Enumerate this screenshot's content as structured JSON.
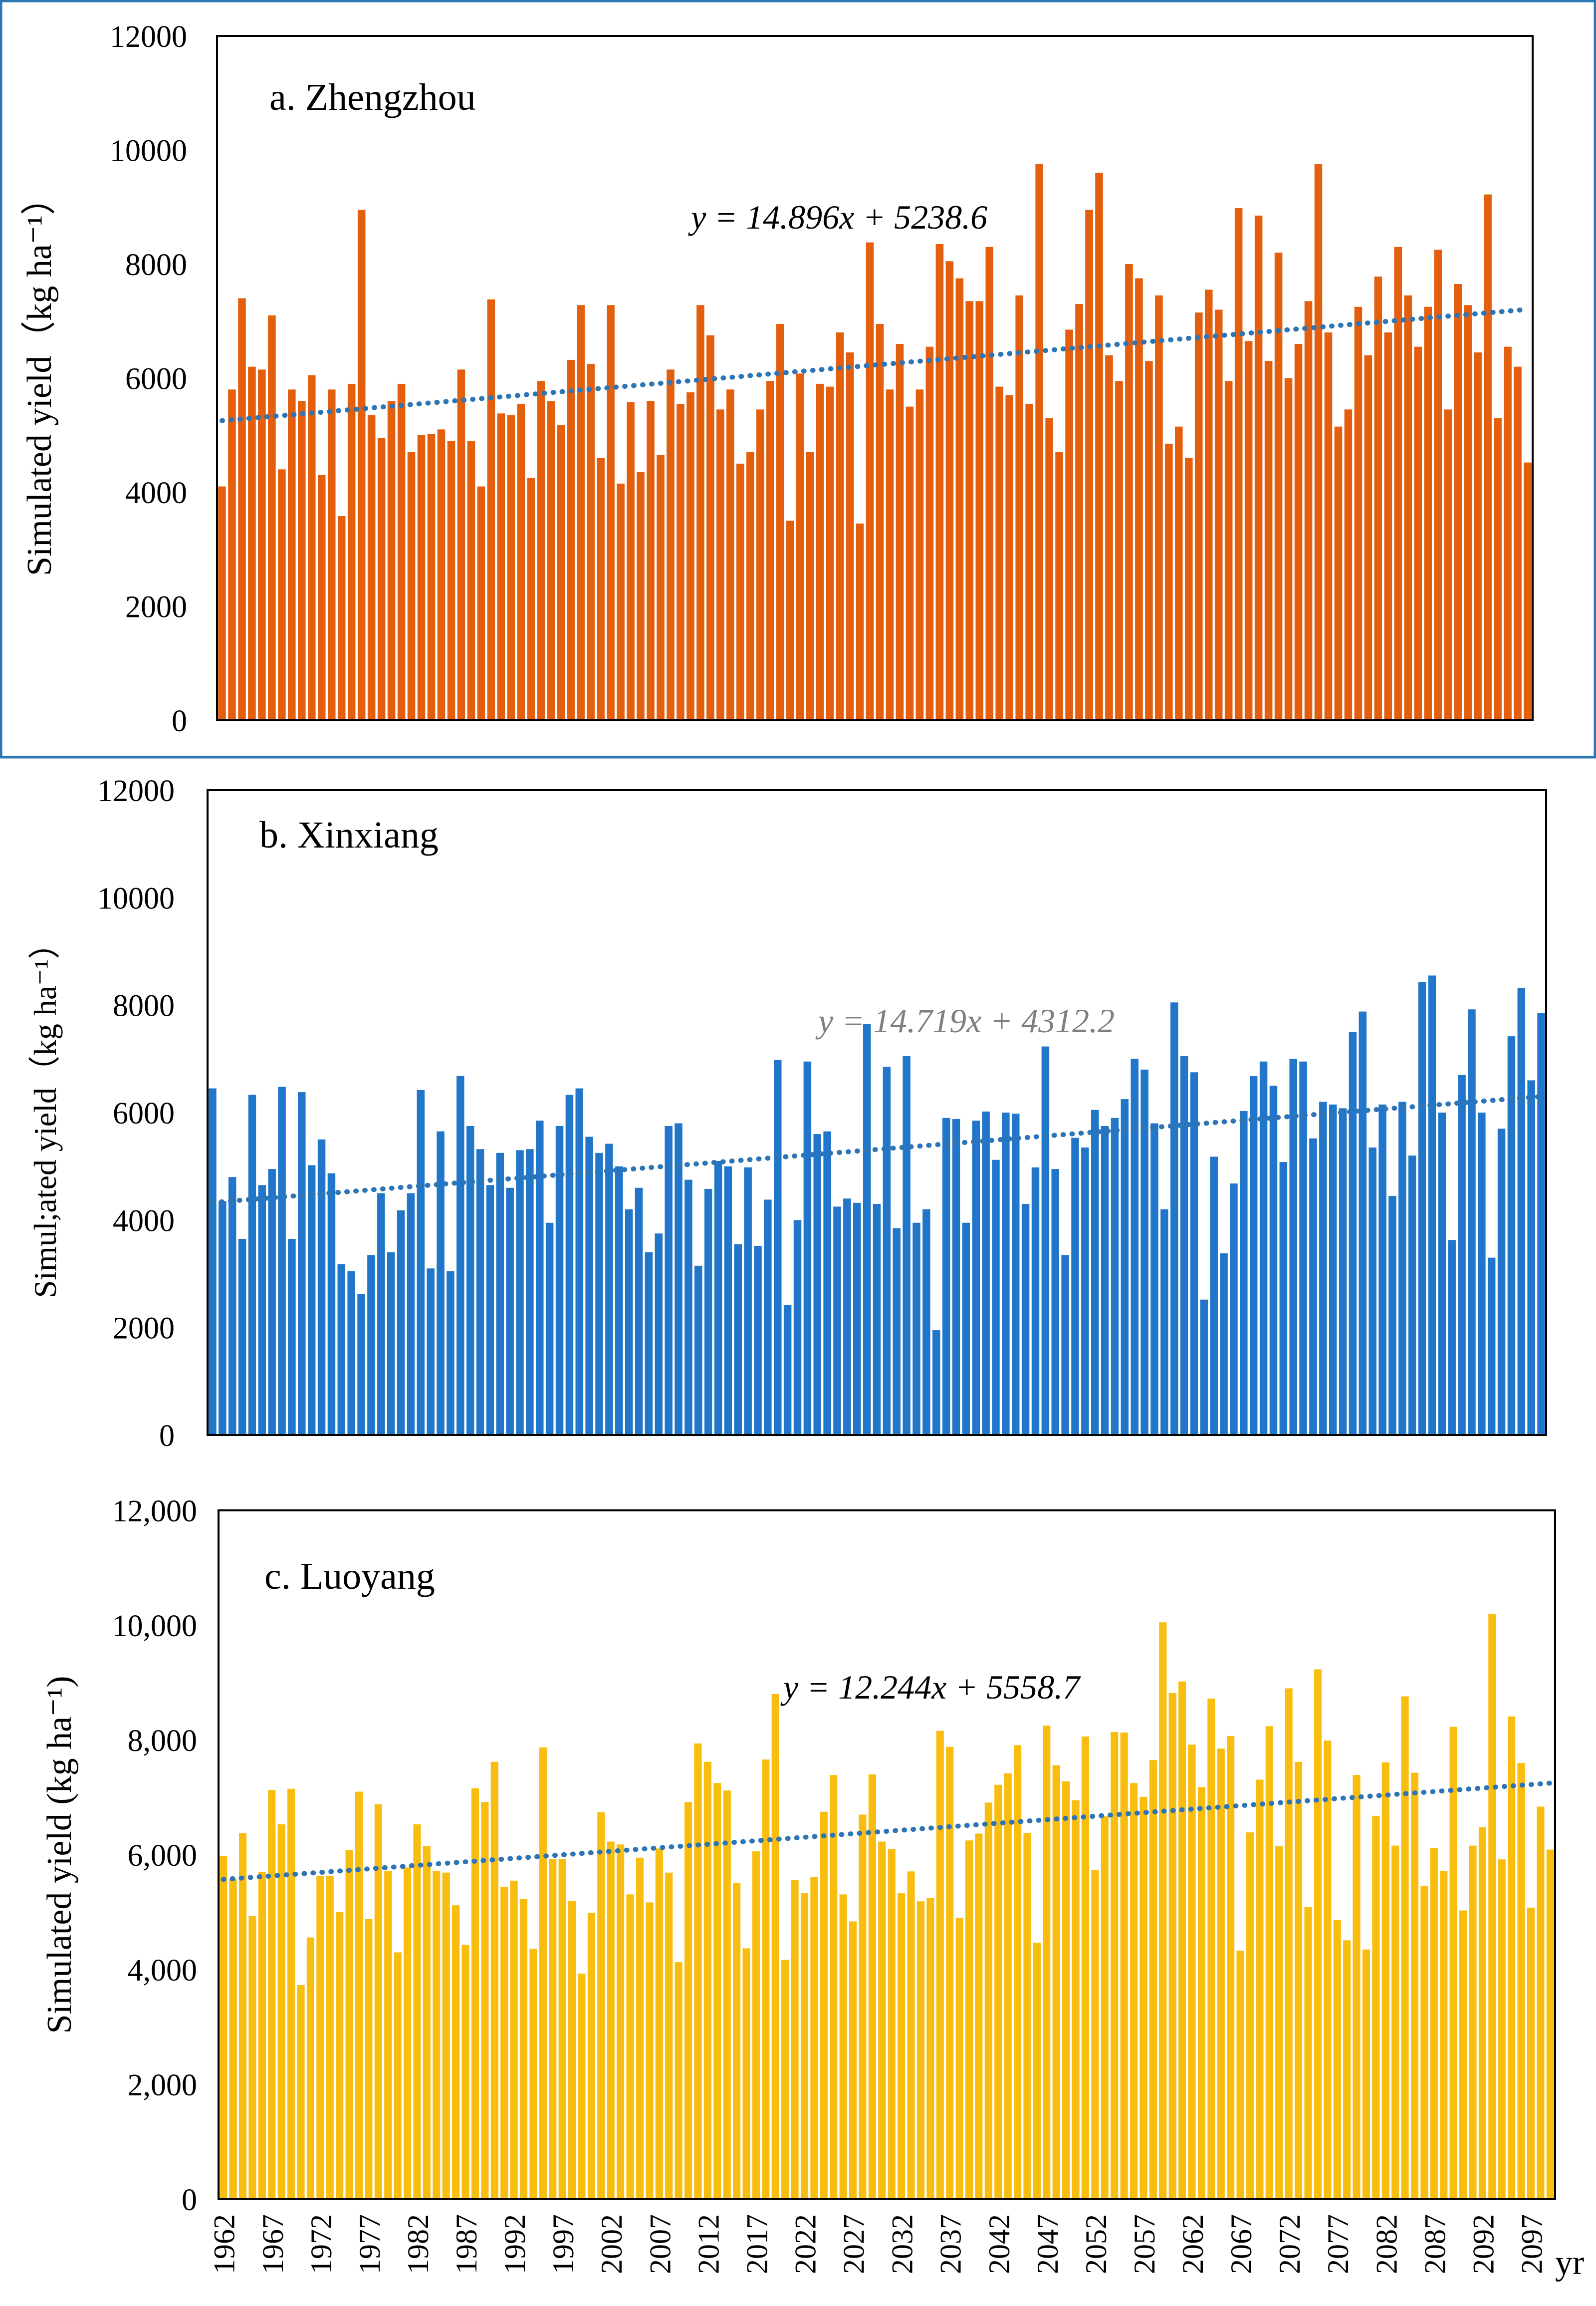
{
  "x_axis_unit_label": "yr",
  "chart_data": [
    {
      "type": "bar",
      "title": "a. Zhengzhou",
      "ylabel": "Simulated yield（kg ha⁻¹）",
      "ylim": [
        0,
        12000
      ],
      "y_ticks": [
        "0",
        "2000",
        "4000",
        "6000",
        "8000",
        "10000",
        "12000"
      ],
      "bar_color": "#e35f0e",
      "trend_color": "#2e75b6",
      "frame_color": "#2e75b6",
      "trend_equation": "y = 14.896x + 5238.6",
      "trend": {
        "slope": 14.896,
        "intercept": 5238.6
      },
      "show_x_tick_labels": false,
      "years_start": 1962,
      "values": [
        4100,
        5800,
        7400,
        6200,
        6150,
        7100,
        4400,
        5800,
        5600,
        6050,
        4300,
        5800,
        3580,
        5900,
        8950,
        5350,
        4950,
        5600,
        5900,
        4700,
        5000,
        5020,
        5100,
        4900,
        6150,
        4900,
        4100,
        7380,
        5380,
        5350,
        5550,
        4250,
        5950,
        5600,
        5180,
        6320,
        7280,
        6250,
        4600,
        7280,
        4150,
        5580,
        4350,
        5600,
        4650,
        6150,
        5550,
        5750,
        7280,
        6750,
        5450,
        5800,
        4500,
        4700,
        5450,
        5950,
        6950,
        3500,
        6080,
        4700,
        5900,
        5850,
        6800,
        6450,
        3450,
        8380,
        6950,
        5800,
        6600,
        5500,
        5800,
        6550,
        8350,
        8050,
        7750,
        7350,
        7350,
        8300,
        5850,
        5700,
        7450,
        5550,
        9750,
        5300,
        4700,
        6850,
        7300,
        8950,
        9600,
        6400,
        5950,
        8000,
        7750,
        6300,
        7450,
        4850,
        5150,
        4600,
        7150,
        7550,
        7200,
        5950,
        8980,
        6650,
        8850,
        6300,
        8200,
        6000,
        6600,
        7350,
        9750,
        6800,
        5150,
        5450,
        7250,
        6400,
        7780,
        6800,
        8300,
        7450,
        6550,
        7250,
        8250,
        5450,
        7650,
        7280,
        6450,
        9220,
        5300,
        6550,
        6200,
        4520
      ]
    },
    {
      "type": "bar",
      "title": "b. Xinxiang",
      "ylabel": "Simul;ated yield（kg ha⁻¹）",
      "ylim": [
        0,
        12000
      ],
      "y_ticks": [
        "0",
        "2000",
        "4000",
        "6000",
        "8000",
        "10000",
        "12000"
      ],
      "bar_color": "#2176c9",
      "trend_color": "#2e75b6",
      "frame_color": "#000000",
      "trend_equation": "y = 14.719x + 4312.2",
      "trend": {
        "slope": 14.719,
        "intercept": 4312.2
      },
      "show_x_tick_labels": false,
      "years_start": 1962,
      "values": [
        6450,
        4350,
        4800,
        3650,
        6330,
        4650,
        4950,
        6480,
        3650,
        6380,
        5020,
        5500,
        4870,
        3180,
        3050,
        2620,
        3350,
        4500,
        3400,
        4180,
        4500,
        6420,
        3100,
        5650,
        3050,
        6680,
        5750,
        5320,
        4650,
        5250,
        4600,
        5300,
        5320,
        5850,
        3950,
        5750,
        6330,
        6450,
        5550,
        5250,
        5420,
        5000,
        4200,
        4600,
        3400,
        3750,
        5750,
        5800,
        4750,
        3150,
        4580,
        5100,
        5000,
        3550,
        4980,
        3520,
        4380,
        6980,
        2420,
        4000,
        6950,
        5600,
        5650,
        4250,
        4400,
        4320,
        7650,
        4300,
        6850,
        3850,
        7050,
        3950,
        4200,
        1950,
        5900,
        5880,
        3950,
        5850,
        6020,
        5120,
        6000,
        5980,
        4300,
        4980,
        7230,
        4950,
        3350,
        5530,
        5350,
        6050,
        5750,
        5900,
        6250,
        7000,
        6800,
        5800,
        4200,
        8050,
        7050,
        6750,
        2520,
        5180,
        3380,
        4680,
        6030,
        6680,
        6950,
        6500,
        5080,
        7000,
        6950,
        5520,
        6200,
        6150,
        6080,
        7500,
        7880,
        5350,
        6150,
        4450,
        6200,
        5200,
        8430,
        8550,
        6000,
        3630,
        6700,
        7920,
        6000,
        3300,
        5700,
        7420,
        8320,
        6600,
        7850
      ]
    },
    {
      "type": "bar",
      "title": "c. Luoyang",
      "ylabel": "Simulated yield (kg ha⁻¹)",
      "ylim": [
        0,
        12000
      ],
      "y_ticks": [
        "0",
        "2,000",
        "4,000",
        "6,000",
        "8,000",
        "10,000",
        "12,000"
      ],
      "bar_color": "#f9bd0f",
      "trend_color": "#2e75b6",
      "frame_color": "#000000",
      "trend_equation": "y = 12.244x + 5558.7",
      "trend": {
        "slope": 12.244,
        "intercept": 5558.7
      },
      "show_x_tick_labels": true,
      "years_start": 1962,
      "x_tick_labels": [
        "1962",
        "1967",
        "1972",
        "1977",
        "1982",
        "1987",
        "1992",
        "1997",
        "2002",
        "2007",
        "2012",
        "2017",
        "2022",
        "2027",
        "2032",
        "2037",
        "2042",
        "2047",
        "2052",
        "2057",
        "2062",
        "2067",
        "2072",
        "2077",
        "2082",
        "2087",
        "2092",
        "2097"
      ],
      "values": [
        5980,
        5580,
        6380,
        4930,
        5700,
        7130,
        6530,
        7150,
        3730,
        4560,
        5630,
        5630,
        5000,
        6080,
        7100,
        4880,
        6880,
        5720,
        4300,
        5780,
        6530,
        6150,
        5720,
        5690,
        5120,
        4430,
        7160,
        6920,
        7620,
        5440,
        5550,
        5230,
        4360,
        7870,
        5930,
        5930,
        5200,
        3930,
        4990,
        6740,
        6230,
        6180,
        5310,
        5950,
        5170,
        6110,
        5690,
        4130,
        6920,
        7940,
        7620,
        7250,
        7120,
        5510,
        4370,
        6060,
        7660,
        8800,
        4170,
        5560,
        5330,
        5610,
        6750,
        7390,
        5310,
        4840,
        6700,
        7400,
        6230,
        6100,
        5330,
        5710,
        5190,
        5250,
        8160,
        7880,
        4900,
        6250,
        6370,
        6910,
        7220,
        7420,
        7910,
        6380,
        4470,
        8250,
        7560,
        7280,
        6950,
        8060,
        5730,
        6670,
        8140,
        8130,
        7250,
        7010,
        7650,
        10050,
        8820,
        9020,
        7920,
        7180,
        8720,
        7850,
        8070,
        4330,
        6390,
        7310,
        8240,
        6150,
        8900,
        7620,
        5090,
        9230,
        7990,
        4860,
        4510,
        7390,
        4350,
        6680,
        7610,
        6160,
        8760,
        7430,
        5460,
        6120,
        5720,
        8230,
        5030,
        6160,
        6480,
        10200,
        5920,
        8410,
        7600,
        5080,
        6840,
        6090
      ]
    }
  ]
}
